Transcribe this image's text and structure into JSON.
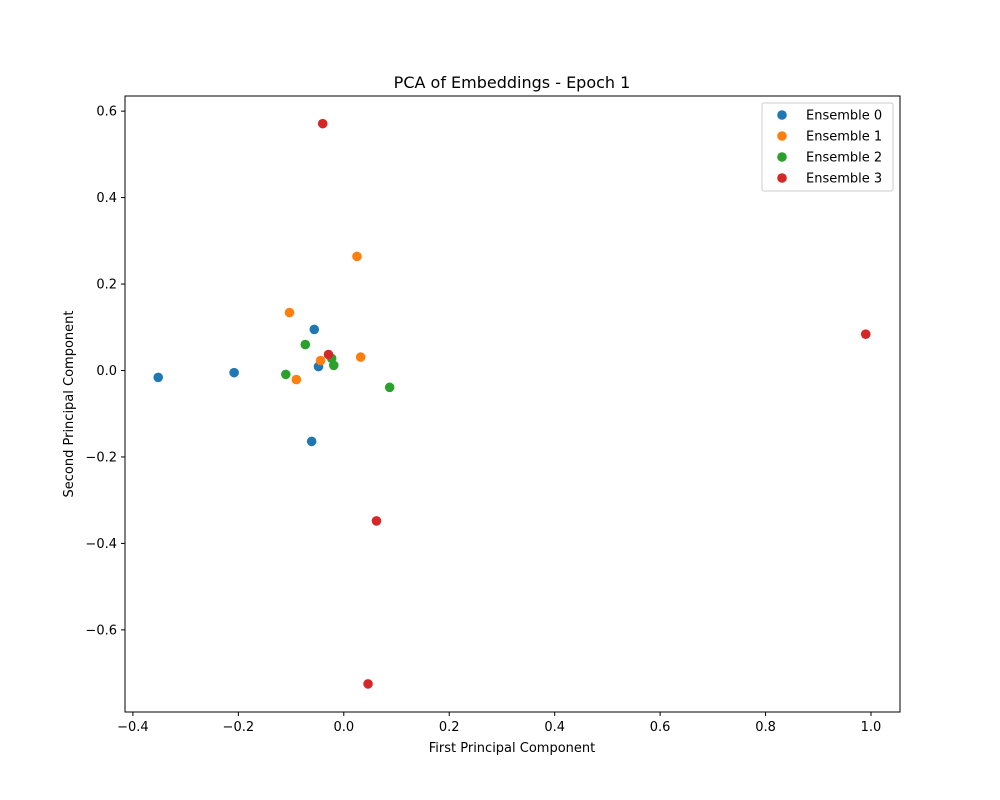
{
  "chart_data": {
    "type": "scatter",
    "title": "PCA of Embeddings - Epoch 1",
    "xlabel": "First Principal Component",
    "ylabel": "Second Principal Component",
    "xlim": [
      -0.415,
      1.055
    ],
    "ylim": [
      -0.79,
      0.635
    ],
    "xticks": [
      -0.4,
      -0.2,
      0.0,
      0.2,
      0.4,
      0.6,
      0.8,
      1.0
    ],
    "xtick_labels": [
      "−0.4",
      "−0.2",
      "0.0",
      "0.2",
      "0.4",
      "0.6",
      "0.8",
      "1.0"
    ],
    "yticks": [
      -0.6,
      -0.4,
      -0.2,
      0.0,
      0.2,
      0.4,
      0.6
    ],
    "ytick_labels": [
      "−0.6",
      "−0.4",
      "−0.2",
      "0.0",
      "0.2",
      "0.4",
      "0.6"
    ],
    "grid": false,
    "legend_position": "top-right",
    "series": [
      {
        "name": "Ensemble 0",
        "color": "#1f77b4",
        "points": [
          {
            "x": -0.352,
            "y": -0.016
          },
          {
            "x": -0.208,
            "y": -0.005
          },
          {
            "x": -0.056,
            "y": 0.095
          },
          {
            "x": -0.048,
            "y": 0.009
          },
          {
            "x": -0.061,
            "y": -0.164
          }
        ]
      },
      {
        "name": "Ensemble 1",
        "color": "#ff7f0e",
        "points": [
          {
            "x": 0.025,
            "y": 0.264
          },
          {
            "x": -0.103,
            "y": 0.134
          },
          {
            "x": -0.044,
            "y": 0.023
          },
          {
            "x": 0.032,
            "y": 0.031
          },
          {
            "x": -0.09,
            "y": -0.021
          }
        ]
      },
      {
        "name": "Ensemble 2",
        "color": "#2ca02c",
        "points": [
          {
            "x": -0.073,
            "y": 0.06
          },
          {
            "x": -0.023,
            "y": 0.028
          },
          {
            "x": -0.019,
            "y": 0.012
          },
          {
            "x": -0.11,
            "y": -0.009
          },
          {
            "x": 0.087,
            "y": -0.039
          }
        ]
      },
      {
        "name": "Ensemble 3",
        "color": "#d62728",
        "points": [
          {
            "x": -0.04,
            "y": 0.571
          },
          {
            "x": -0.029,
            "y": 0.037
          },
          {
            "x": 0.99,
            "y": 0.084
          },
          {
            "x": 0.062,
            "y": -0.348
          },
          {
            "x": 0.046,
            "y": -0.725
          }
        ]
      }
    ]
  }
}
